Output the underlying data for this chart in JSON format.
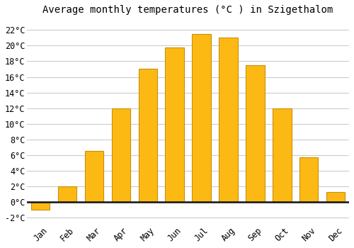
{
  "title": "Average monthly temperatures (°C ) in Szigethalom",
  "months": [
    "Jan",
    "Feb",
    "Mar",
    "Apr",
    "May",
    "Jun",
    "Jul",
    "Aug",
    "Sep",
    "Oct",
    "Nov",
    "Dec"
  ],
  "values": [
    -1.0,
    2.0,
    6.5,
    12.0,
    17.0,
    19.8,
    21.5,
    21.0,
    17.5,
    12.0,
    5.7,
    1.3
  ],
  "bar_color": "#FDB913",
  "bar_edge_color": "#C8900A",
  "background_color": "#FFFFFF",
  "plot_bg_color": "#FFFFFF",
  "grid_color": "#CCCCCC",
  "yticks": [
    -2,
    0,
    2,
    4,
    6,
    8,
    10,
    12,
    14,
    16,
    18,
    20,
    22
  ],
  "ylim": [
    -2.8,
    23.2
  ],
  "title_fontsize": 10,
  "tick_fontsize": 8.5,
  "zero_line_color": "#111111",
  "bar_width": 0.7
}
